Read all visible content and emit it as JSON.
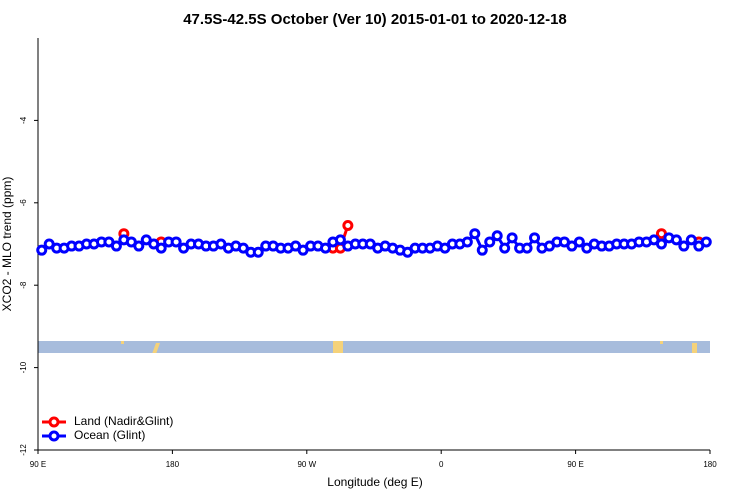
{
  "chart_data": {
    "type": "line",
    "title": "47.5S-42.5S October (Ver 10)   2015-01-01 to 2020-12-18",
    "x_label": "Longitude (deg E)",
    "y_label": "XCO2 - MLO trend (ppm)",
    "xlim": [
      90,
      540
    ],
    "xticks": [
      {
        "value": 90,
        "label": "90 E"
      },
      180,
      {
        "value": 270,
        "label": "90 W"
      },
      {
        "value": 360,
        "label": "0"
      },
      {
        "value": 450,
        "label": "90 E"
      },
      {
        "value": 540,
        "label": "180"
      }
    ],
    "ylim": [
      -12,
      -2
    ],
    "yticks": [
      -4,
      -6,
      -8,
      -10,
      -12
    ],
    "legend": "bottom-left",
    "series": [
      {
        "name": "Land (Nadir&Glint)",
        "color": "#ff0000",
        "x": [
          147.5,
          172.5,
          287.5,
          292.5,
          297.5,
          507.5,
          532.5
        ],
        "values": [
          -6.75,
          -6.95,
          -7.1,
          -7.1,
          -6.55,
          -6.75,
          -6.95
        ]
      },
      {
        "name": "Ocean (Glint)",
        "color": "#0000ff",
        "x": [
          92.5,
          97.5,
          102.5,
          107.5,
          112.5,
          117.5,
          122.5,
          127.5,
          132.5,
          137.5,
          142.5,
          147.5,
          152.5,
          157.5,
          162.5,
          167.5,
          172.5,
          177.5,
          182.5,
          187.5,
          192.5,
          197.5,
          202.5,
          207.5,
          212.5,
          217.5,
          222.5,
          227.5,
          232.5,
          237.5,
          242.5,
          247.5,
          252.5,
          257.5,
          262.5,
          267.5,
          272.5,
          277.5,
          282.5,
          287.5,
          292.5,
          297.5,
          302.5,
          307.5,
          312.5,
          317.5,
          322.5,
          327.5,
          332.5,
          337.5,
          342.5,
          347.5,
          352.5,
          357.5,
          362.5,
          367.5,
          372.5,
          377.5,
          382.5,
          387.5,
          392.5,
          397.5,
          402.5,
          407.5,
          412.5,
          417.5,
          422.5,
          427.5,
          432.5,
          437.5,
          442.5,
          447.5,
          452.5,
          457.5,
          462.5,
          467.5,
          472.5,
          477.5,
          482.5,
          487.5,
          492.5,
          497.5,
          502.5,
          507.5,
          512.5,
          517.5,
          522.5,
          527.5,
          532.5,
          537.5
        ],
        "values": [
          -7.15,
          -7.0,
          -7.1,
          -7.1,
          -7.05,
          -7.05,
          -7.0,
          -7.0,
          -6.95,
          -6.95,
          -7.05,
          -6.9,
          -6.95,
          -7.05,
          -6.9,
          -7.0,
          -7.1,
          -6.95,
          -6.95,
          -7.1,
          -7.0,
          -7.0,
          -7.05,
          -7.05,
          -7.0,
          -7.1,
          -7.05,
          -7.1,
          -7.2,
          -7.2,
          -7.05,
          -7.05,
          -7.1,
          -7.1,
          -7.05,
          -7.15,
          -7.05,
          -7.05,
          -7.1,
          -6.95,
          -6.9,
          -7.05,
          -7.0,
          -7.0,
          -7.0,
          -7.1,
          -7.05,
          -7.1,
          -7.15,
          -7.2,
          -7.1,
          -7.1,
          -7.1,
          -7.05,
          -7.1,
          -7.0,
          -7.0,
          -6.95,
          -6.75,
          -7.15,
          -6.95,
          -6.8,
          -7.1,
          -6.85,
          -7.1,
          -7.1,
          -6.85,
          -7.1,
          -7.05,
          -6.95,
          -6.95,
          -7.05,
          -6.95,
          -7.1,
          -7.0,
          -7.05,
          -7.05,
          -7.0,
          -7.0,
          -7.0,
          -6.95,
          -6.95,
          -6.9,
          -7.0,
          -6.85,
          -6.9,
          -7.05,
          -6.9,
          -7.05,
          -6.95
        ]
      }
    ]
  }
}
